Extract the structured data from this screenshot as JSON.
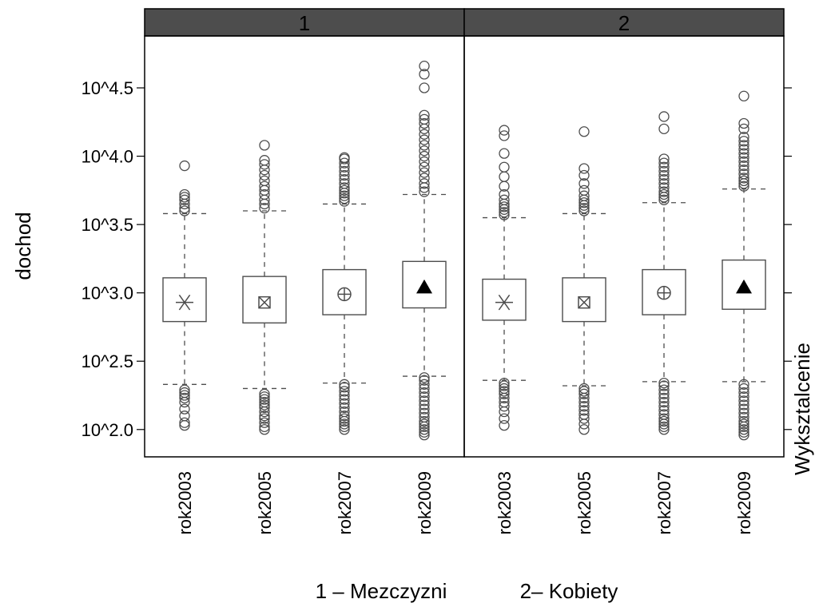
{
  "chart_data": {
    "type": "box",
    "ylabel": "dochod",
    "right_label": "Wyksztalcenie",
    "y_scale": "log10",
    "ylim_log10": [
      1.8,
      4.88
    ],
    "y_ticks": [
      {
        "value_log10": 2.0,
        "label": "10^2.0"
      },
      {
        "value_log10": 2.5,
        "label": "10^2.5"
      },
      {
        "value_log10": 3.0,
        "label": "10^3.0"
      },
      {
        "value_log10": 3.5,
        "label": "10^3.5"
      },
      {
        "value_log10": 4.0,
        "label": "10^4.0"
      },
      {
        "value_log10": 4.5,
        "label": "10^4.5"
      }
    ],
    "categories": [
      "rok2003",
      "rok2005",
      "rok2007",
      "rok2009"
    ],
    "symbols": [
      "asterisk",
      "boxed-x",
      "circled-plus",
      "triangle"
    ],
    "colors": {
      "strip": "#4d4d4d",
      "strip_text": "#000000",
      "stroke": "#4d4d4d",
      "frame": "#000000"
    },
    "panels": [
      {
        "strip": "1",
        "boxes": [
          {
            "q1": 2.79,
            "median": 2.93,
            "q3": 3.11,
            "whisker_low": 2.33,
            "whisker_high": 3.58,
            "outliers_high": [
              3.6,
              3.62,
              3.65,
              3.68,
              3.7,
              3.72,
              3.93
            ],
            "outliers_low": [
              2.03,
              2.05,
              2.1,
              2.15,
              2.2,
              2.23,
              2.25,
              2.27,
              2.29
            ]
          },
          {
            "q1": 2.78,
            "median": 2.93,
            "q3": 3.12,
            "whisker_low": 2.3,
            "whisker_high": 3.6,
            "outliers_high": [
              3.62,
              3.65,
              3.68,
              3.72,
              3.75,
              3.78,
              3.82,
              3.86,
              3.9,
              3.94,
              3.97,
              4.08
            ],
            "outliers_low": [
              2.0,
              2.02,
              2.05,
              2.08,
              2.1,
              2.13,
              2.16,
              2.18,
              2.2,
              2.22,
              2.24,
              2.26
            ]
          },
          {
            "q1": 2.84,
            "median": 2.99,
            "q3": 3.17,
            "whisker_low": 2.34,
            "whisker_high": 3.65,
            "outliers_high": [
              3.67,
              3.69,
              3.71,
              3.73,
              3.75,
              3.77,
              3.8,
              3.83,
              3.86,
              3.89,
              3.92,
              3.95,
              3.98,
              3.99
            ],
            "outliers_low": [
              2.0,
              2.02,
              2.04,
              2.06,
              2.08,
              2.1,
              2.13,
              2.16,
              2.19,
              2.22,
              2.25,
              2.28,
              2.31,
              2.33
            ]
          },
          {
            "q1": 2.89,
            "median": 3.04,
            "q3": 3.23,
            "whisker_low": 2.39,
            "whisker_high": 3.72,
            "outliers_high": [
              3.74,
              3.77,
              3.8,
              3.84,
              3.88,
              3.92,
              3.96,
              4.0,
              4.04,
              4.08,
              4.12,
              4.16,
              4.2,
              4.24,
              4.27,
              4.3,
              4.5,
              4.6,
              4.66
            ],
            "outliers_low": [
              1.96,
              1.98,
              2.0,
              2.02,
              2.04,
              2.06,
              2.09,
              2.12,
              2.15,
              2.18,
              2.21,
              2.24,
              2.27,
              2.3,
              2.33,
              2.36,
              2.38
            ]
          }
        ]
      },
      {
        "strip": "2",
        "boxes": [
          {
            "q1": 2.8,
            "median": 2.93,
            "q3": 3.1,
            "whisker_low": 2.36,
            "whisker_high": 3.55,
            "outliers_high": [
              3.57,
              3.59,
              3.61,
              3.63,
              3.65,
              3.68,
              3.72,
              3.78,
              3.85,
              3.92,
              4.02,
              4.15,
              4.19
            ],
            "outliers_low": [
              2.03,
              2.08,
              2.13,
              2.17,
              2.2,
              2.23,
              2.26,
              2.28,
              2.3,
              2.32,
              2.34
            ]
          },
          {
            "q1": 2.79,
            "median": 2.93,
            "q3": 3.11,
            "whisker_low": 2.32,
            "whisker_high": 3.58,
            "outliers_high": [
              3.6,
              3.62,
              3.64,
              3.66,
              3.68,
              3.71,
              3.75,
              3.8,
              3.86,
              3.91,
              4.18
            ],
            "outliers_low": [
              2.0,
              2.04,
              2.08,
              2.11,
              2.14,
              2.17,
              2.2,
              2.23,
              2.26,
              2.28,
              2.3
            ]
          },
          {
            "q1": 2.84,
            "median": 3.0,
            "q3": 3.17,
            "whisker_low": 2.35,
            "whisker_high": 3.66,
            "outliers_high": [
              3.68,
              3.7,
              3.72,
              3.74,
              3.77,
              3.8,
              3.83,
              3.86,
              3.89,
              3.92,
              3.95,
              3.98,
              4.2,
              4.29
            ],
            "outliers_low": [
              2.0,
              2.02,
              2.04,
              2.06,
              2.08,
              2.11,
              2.14,
              2.17,
              2.2,
              2.23,
              2.26,
              2.29,
              2.32,
              2.34
            ]
          },
          {
            "q1": 2.88,
            "median": 3.04,
            "q3": 3.24,
            "whisker_low": 2.35,
            "whisker_high": 3.76,
            "outliers_high": [
              3.78,
              3.8,
              3.82,
              3.84,
              3.87,
              3.9,
              3.93,
              3.96,
              3.99,
              4.02,
              4.05,
              4.08,
              4.11,
              4.14,
              4.2,
              4.24,
              4.44
            ],
            "outliers_low": [
              1.96,
              1.98,
              2.0,
              2.02,
              2.04,
              2.06,
              2.09,
              2.12,
              2.15,
              2.18,
              2.21,
              2.24,
              2.27,
              2.3,
              2.33
            ]
          }
        ]
      }
    ],
    "footer": [
      "1 – Mezczyzni",
      "2– Kobiety"
    ]
  }
}
